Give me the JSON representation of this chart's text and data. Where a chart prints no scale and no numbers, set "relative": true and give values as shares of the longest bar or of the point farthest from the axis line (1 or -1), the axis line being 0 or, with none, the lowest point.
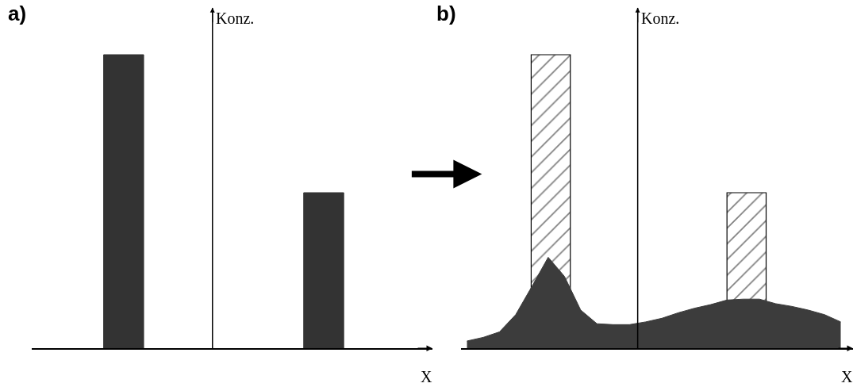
{
  "chart_data": [
    {
      "type": "bar",
      "title": "a)",
      "xlabel": "X",
      "ylabel": "Konz.",
      "relative": true,
      "categories": [
        null,
        null
      ],
      "series": [
        {
          "color": "#333333",
          "values": [
            1,
            0.53
          ]
        }
      ]
    },
    {
      "type": "bar",
      "title": "b)",
      "xlabel": "X",
      "ylabel": "Konz.",
      "relative": true,
      "categories": [
        null,
        null
      ],
      "series": [
        {
          "color": "#000000",
          "values": [
            1,
            0.53
          ]
        }
      ]
    },
    {
      "type": "area",
      "relative": true,
      "categories": [
        null,
        null,
        null,
        null,
        null,
        null,
        null,
        null,
        null,
        null,
        null,
        null,
        null,
        null,
        null,
        null,
        null,
        null,
        null,
        null,
        null,
        null,
        null,
        null
      ],
      "series": [
        {
          "color": "#3c3c3c",
          "values": [
            0.08,
            0.12,
            0.18,
            0.37,
            0.68,
            1,
            0.79,
            0.42,
            0.27,
            0.26,
            0.26,
            0.29,
            0.33,
            0.39,
            0.44,
            0.48,
            0.53,
            0.54,
            0.54,
            0.49,
            0.46,
            0.42,
            0.37,
            0.29
          ]
        }
      ]
    }
  ]
}
